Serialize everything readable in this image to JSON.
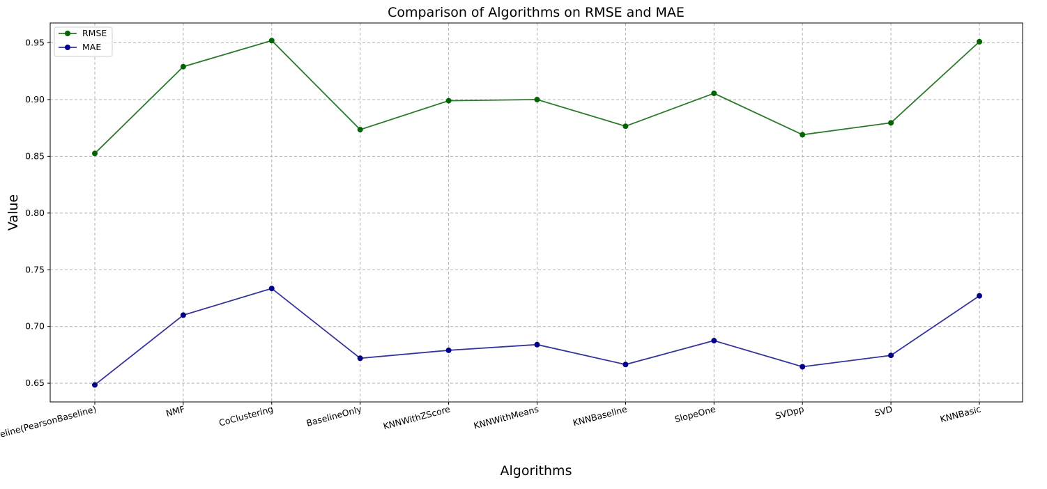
{
  "chart_data": {
    "type": "line",
    "title": "Comparison of Algorithms on RMSE and MAE",
    "xlabel": "Algorithms",
    "ylabel": "Value",
    "categories": [
      "KNNBaseline(PearsonBaseline)",
      "NMF",
      "CoClustering",
      "BaselineOnly",
      "KNNWithZScore",
      "KNNWithMeans",
      "KNNBaseline",
      "SlopeOne",
      "SVDpp",
      "SVD",
      "KNNBasic"
    ],
    "series": [
      {
        "name": "RMSE",
        "color": "#006400",
        "line_color": "#2b7a2b",
        "values": [
          0.8525,
          0.929,
          0.952,
          0.8735,
          0.899,
          0.9,
          0.8765,
          0.9055,
          0.869,
          0.8795,
          0.951
        ]
      },
      {
        "name": "MAE",
        "color": "#00008b",
        "line_color": "#33339a",
        "values": [
          0.6485,
          0.71,
          0.7335,
          0.672,
          0.679,
          0.684,
          0.6665,
          0.6875,
          0.6645,
          0.6745,
          0.727
        ]
      }
    ],
    "yticks": [
      "0.65",
      "0.70",
      "0.75",
      "0.80",
      "0.85",
      "0.90",
      "0.95"
    ],
    "ylim": [
      0.6335,
      0.9675
    ],
    "grid": true,
    "legend": "top-left"
  }
}
